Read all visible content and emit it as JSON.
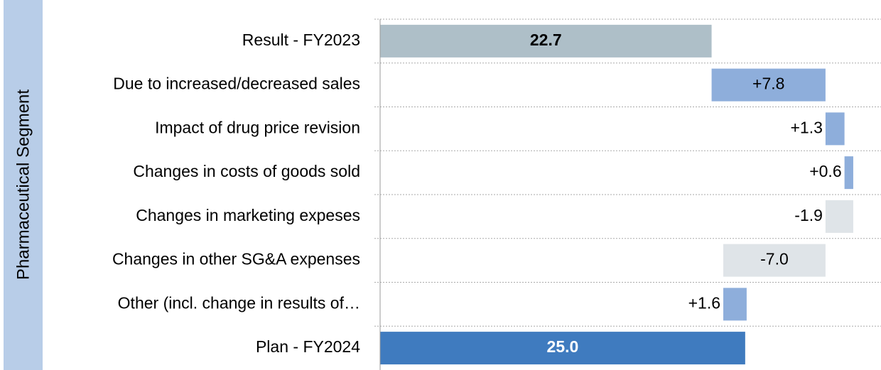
{
  "chart_data": {
    "type": "waterfall",
    "axis_label": "Pharmaceutical Segment",
    "categories": [
      "Result - FY2023",
      "Due to increased/decreased sales",
      "Impact of drug price revision",
      "Changes in costs of goods sold",
      "Changes in marketing expeses",
      "Changes in other SG&A expenses",
      "Other (incl. change in results of…",
      "Plan - FY2024"
    ],
    "values": [
      22.7,
      7.8,
      1.3,
      0.6,
      -1.9,
      -7.0,
      1.6,
      25.0
    ],
    "value_labels": [
      "22.7",
      "+7.8",
      "+1.3",
      "+0.6",
      "-1.9",
      "-7.0",
      "+1.6",
      "25.0"
    ],
    "is_total": [
      true,
      false,
      false,
      false,
      false,
      false,
      false,
      true
    ],
    "colors": [
      "#aebfc8",
      "#8eaedb",
      "#8eaedb",
      "#8eaedb",
      "#dfe4e8",
      "#dfe4e8",
      "#8eaedb",
      "#3f7bbf"
    ],
    "xlim": [
      0,
      34.3
    ]
  }
}
